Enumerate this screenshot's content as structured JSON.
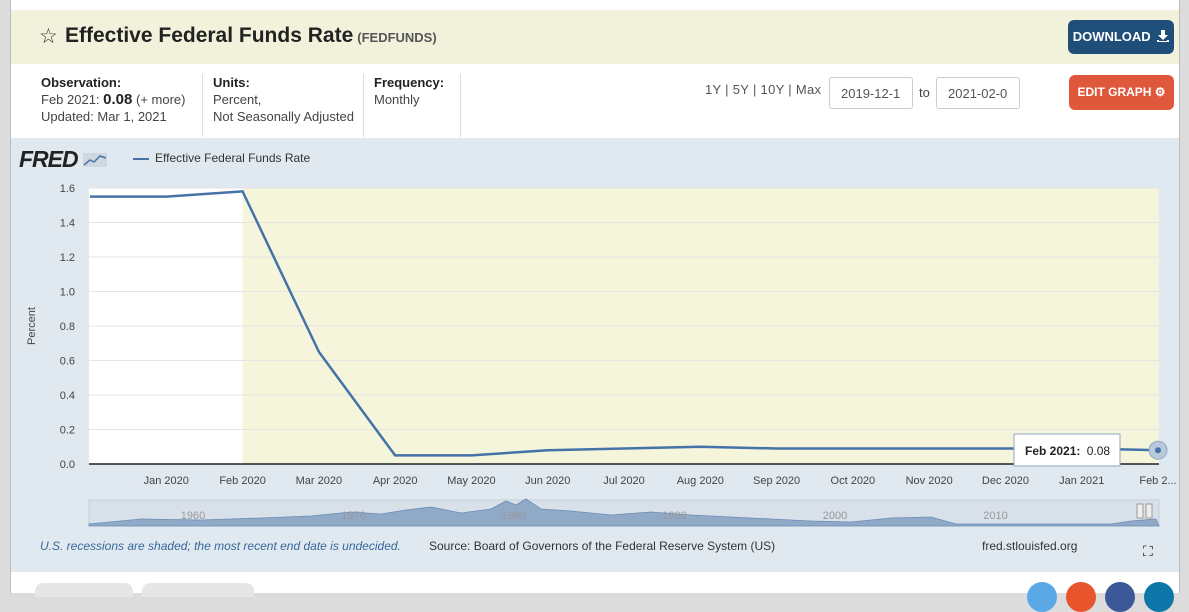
{
  "header": {
    "title": "Effective Federal Funds Rate",
    "series_code": "(FEDFUNDS)",
    "download_label": "DOWNLOAD"
  },
  "meta": {
    "observation_label": "Observation:",
    "observation_date": "Feb 2021:",
    "observation_value": "0.08",
    "observation_more": "(+ more)",
    "updated": "Updated: Mar 1, 2021",
    "units_label": "Units:",
    "units_line1": "Percent,",
    "units_line2": "Not Seasonally Adjusted",
    "frequency_label": "Frequency:",
    "frequency_value": "Monthly"
  },
  "controls": {
    "ranges": "1Y | 5Y | 10Y | Max",
    "start_date": "2019-12-1",
    "to_label": "to",
    "end_date": "2021-02-0",
    "edit_label": "EDIT GRAPH"
  },
  "chart_area": {
    "logo": "FRED",
    "legend_label": "Effective Federal Funds Rate",
    "recession_note": "U.S. recessions are shaded; the most recent end date is undecided.",
    "source": "Source: Board of Governors of the Federal Reserve System (US)",
    "site": "fred.stlouisfed.org",
    "tooltip_date": "Feb 2021:",
    "tooltip_value": "0.08"
  },
  "colors": {
    "line": "#4572a7",
    "recession": "#f5f5dc",
    "download_button": "#1f4e79",
    "edit_button": "#e0583c"
  },
  "chart_data": {
    "type": "line",
    "title": "",
    "xlabel": "",
    "ylabel": "Percent",
    "ylim": [
      0,
      1.6
    ],
    "yticks": [
      "0.0",
      "0.2",
      "0.4",
      "0.6",
      "0.8",
      "1.0",
      "1.2",
      "1.4",
      "1.6"
    ],
    "categories": [
      "Dec 2019",
      "Jan 2020",
      "Feb 2020",
      "Mar 2020",
      "Apr 2020",
      "May 2020",
      "Jun 2020",
      "Jul 2020",
      "Aug 2020",
      "Sep 2020",
      "Oct 2020",
      "Nov 2020",
      "Dec 2020",
      "Jan 2021",
      "Feb 2021"
    ],
    "xticks": [
      "Jan 2020",
      "Feb 2020",
      "Mar 2020",
      "Apr 2020",
      "May 2020",
      "Jun 2020",
      "Jul 2020",
      "Aug 2020",
      "Sep 2020",
      "Oct 2020",
      "Nov 2020",
      "Dec 2020",
      "Jan 2021",
      "Feb 2..."
    ],
    "series": [
      {
        "name": "Effective Federal Funds Rate",
        "values": [
          1.55,
          1.55,
          1.58,
          0.65,
          0.05,
          0.05,
          0.08,
          0.09,
          0.1,
          0.09,
          0.09,
          0.09,
          0.09,
          0.09,
          0.08
        ]
      }
    ],
    "recession_start": "Feb 2020",
    "grid": true,
    "navigator_labels": [
      "1960",
      "1970",
      "1980",
      "1990",
      "2000",
      "2010"
    ]
  }
}
